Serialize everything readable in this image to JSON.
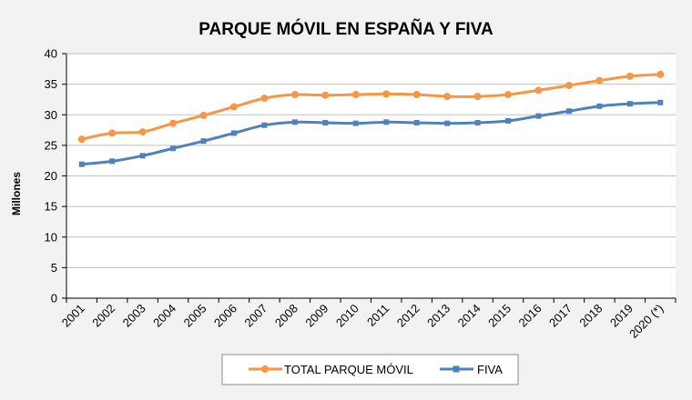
{
  "chart_data": {
    "type": "line",
    "title": "PARQUE MÓVIL EN ESPAÑA Y FIVA",
    "xlabel": "",
    "ylabel": "Millones",
    "ylim": [
      0,
      40
    ],
    "yticks": [
      0,
      5,
      10,
      15,
      20,
      25,
      30,
      35,
      40
    ],
    "grid": true,
    "legend_position": "bottom",
    "categories": [
      "2001",
      "2002",
      "2003",
      "2004",
      "2005",
      "2006",
      "2007",
      "2008",
      "2009",
      "2010",
      "2011",
      "2012",
      "2013",
      "2014",
      "2015",
      "2016",
      "2017",
      "2018",
      "2019",
      "2020 (*)"
    ],
    "series": [
      {
        "name": "TOTAL PARQUE MÓVIL",
        "color": "#f79646",
        "marker": "circle",
        "values": [
          26.0,
          27.0,
          27.2,
          28.6,
          29.9,
          31.3,
          32.7,
          33.3,
          33.2,
          33.3,
          33.4,
          33.3,
          33.0,
          33.0,
          33.3,
          34.0,
          34.8,
          35.6,
          36.3,
          36.6
        ]
      },
      {
        "name": "FIVA",
        "color": "#4f81bd",
        "marker": "square",
        "values": [
          21.9,
          22.4,
          23.3,
          24.5,
          25.7,
          27.0,
          28.3,
          28.8,
          28.7,
          28.6,
          28.8,
          28.7,
          28.6,
          28.7,
          29.0,
          29.8,
          30.6,
          31.4,
          31.8,
          32.0
        ]
      }
    ]
  },
  "colors": {
    "background": "#f2f2f2",
    "plot_background": "#ffffff",
    "grid": "#bfbfbf",
    "axis": "#000000"
  }
}
